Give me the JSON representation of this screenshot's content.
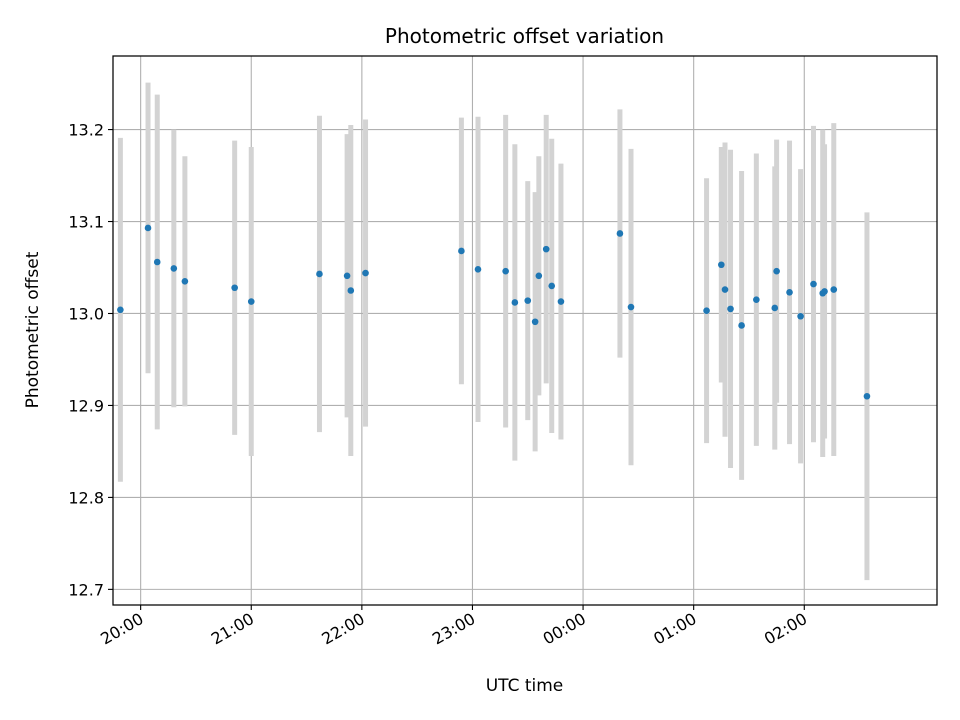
{
  "chart_data": {
    "type": "scatter",
    "title": "Photometric offset variation",
    "xlabel": "UTC time",
    "ylabel": "Photometric offset",
    "x_axis_type": "time",
    "xlim": [
      "19:45",
      "03:12"
    ],
    "ylim": [
      12.683,
      13.28
    ],
    "x_ticks": [
      "20:00",
      "21:00",
      "22:00",
      "23:00",
      "00:00",
      "01:00",
      "02:00"
    ],
    "y_ticks": [
      12.7,
      12.8,
      12.9,
      13.0,
      13.1,
      13.2
    ],
    "y_tick_labels": [
      "12.7",
      "12.8",
      "12.9",
      "13.0",
      "13.1",
      "13.2"
    ],
    "grid": true,
    "legend": "none",
    "colors": {
      "points": "#1f77b4",
      "error_bars": "#d3d3d3",
      "grid": "#b0b0b0"
    },
    "points": [
      {
        "x": "19:49",
        "y": 13.004,
        "err": 0.187
      },
      {
        "x": "20:04",
        "y": 13.093,
        "err": 0.158
      },
      {
        "x": "20:09",
        "y": 13.056,
        "err": 0.182
      },
      {
        "x": "20:18",
        "y": 13.049,
        "err": 0.151
      },
      {
        "x": "20:24",
        "y": 13.035,
        "err": 0.136
      },
      {
        "x": "20:51",
        "y": 13.028,
        "err": 0.16
      },
      {
        "x": "21:00",
        "y": 13.013,
        "err": 0.168
      },
      {
        "x": "21:37",
        "y": 13.043,
        "err": 0.172
      },
      {
        "x": "21:52",
        "y": 13.041,
        "err": 0.154
      },
      {
        "x": "21:54",
        "y": 13.025,
        "err": 0.18
      },
      {
        "x": "22:02",
        "y": 13.044,
        "err": 0.167
      },
      {
        "x": "22:54",
        "y": 13.068,
        "err": 0.145
      },
      {
        "x": "23:03",
        "y": 13.048,
        "err": 0.166
      },
      {
        "x": "23:18",
        "y": 13.046,
        "err": 0.17
      },
      {
        "x": "23:23",
        "y": 13.012,
        "err": 0.172
      },
      {
        "x": "23:30",
        "y": 13.014,
        "err": 0.13
      },
      {
        "x": "23:34",
        "y": 12.991,
        "err": 0.141
      },
      {
        "x": "23:36",
        "y": 13.041,
        "err": 0.13
      },
      {
        "x": "23:40",
        "y": 13.07,
        "err": 0.146
      },
      {
        "x": "23:43",
        "y": 13.03,
        "err": 0.16
      },
      {
        "x": "23:48",
        "y": 13.013,
        "err": 0.15
      },
      {
        "x": "00:20",
        "y": 13.087,
        "err": 0.135
      },
      {
        "x": "00:26",
        "y": 13.007,
        "err": 0.172
      },
      {
        "x": "01:07",
        "y": 13.003,
        "err": 0.144
      },
      {
        "x": "01:15",
        "y": 13.053,
        "err": 0.128
      },
      {
        "x": "01:17",
        "y": 13.026,
        "err": 0.16
      },
      {
        "x": "01:20",
        "y": 13.005,
        "err": 0.173
      },
      {
        "x": "01:26",
        "y": 12.987,
        "err": 0.168
      },
      {
        "x": "01:34",
        "y": 13.015,
        "err": 0.159
      },
      {
        "x": "01:44",
        "y": 13.006,
        "err": 0.154
      },
      {
        "x": "01:45",
        "y": 13.046,
        "err": 0.143
      },
      {
        "x": "01:52",
        "y": 13.023,
        "err": 0.165
      },
      {
        "x": "01:58",
        "y": 12.997,
        "err": 0.16
      },
      {
        "x": "02:05",
        "y": 13.032,
        "err": 0.172
      },
      {
        "x": "02:10",
        "y": 13.022,
        "err": 0.178
      },
      {
        "x": "02:11",
        "y": 13.024,
        "err": 0.16
      },
      {
        "x": "02:16",
        "y": 13.026,
        "err": 0.181
      },
      {
        "x": "02:34",
        "y": 12.91,
        "err": 0.2
      }
    ]
  }
}
